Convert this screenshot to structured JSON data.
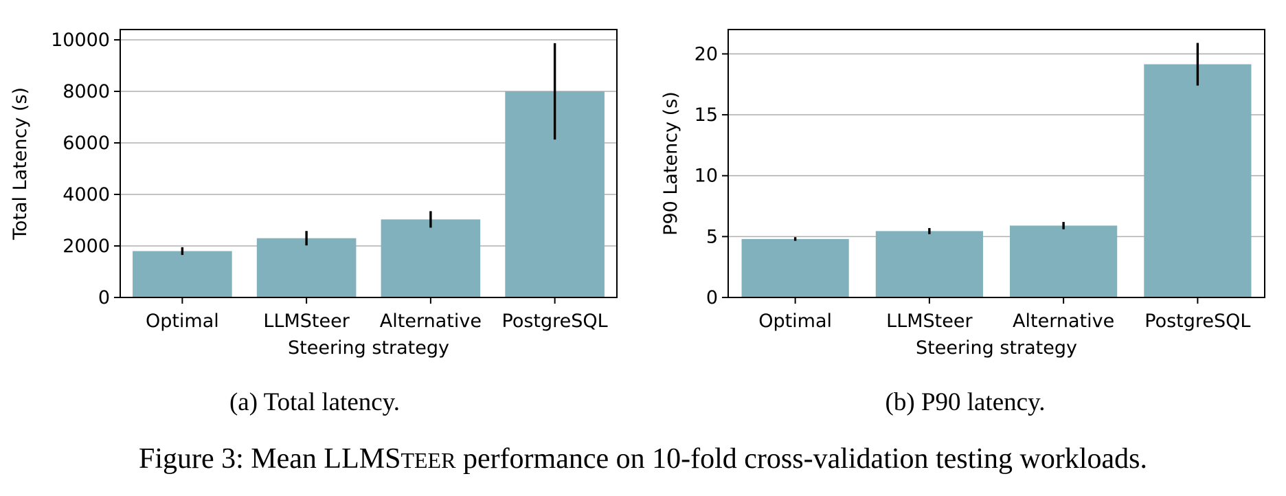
{
  "chart_data": [
    {
      "type": "bar",
      "categories": [
        "Optimal",
        "LLMSteer",
        "Alternative",
        "PostgreSQL"
      ],
      "values": [
        1800,
        2300,
        3030,
        8000
      ],
      "error": [
        150,
        280,
        320,
        1870
      ],
      "xlabel": "Steering strategy",
      "ylabel": "Total Latency (s)",
      "ylim": [
        0,
        10400
      ],
      "yticks": [
        0,
        2000,
        4000,
        6000,
        8000,
        10000
      ],
      "grid": "horizontal",
      "color": "#80b1bd",
      "caption": "(a) Total latency."
    },
    {
      "type": "bar",
      "categories": [
        "Optimal",
        "LLMSteer",
        "Alternative",
        "PostgreSQL"
      ],
      "values": [
        4.8,
        5.45,
        5.9,
        19.15
      ],
      "error": [
        0.15,
        0.25,
        0.3,
        1.75
      ],
      "xlabel": "Steering strategy",
      "ylabel": "P90 Latency (s)",
      "ylim": [
        0,
        22
      ],
      "yticks": [
        0,
        5,
        10,
        15,
        20
      ],
      "grid": "horizontal",
      "color": "#80b1bd",
      "caption": "(b) P90 latency."
    }
  ],
  "figure_caption": {
    "prefix": "Figure 3: Mean LLMS",
    "smallcaps": "TEER",
    "suffix": " performance on 10-fold cross-validation testing workloads."
  }
}
